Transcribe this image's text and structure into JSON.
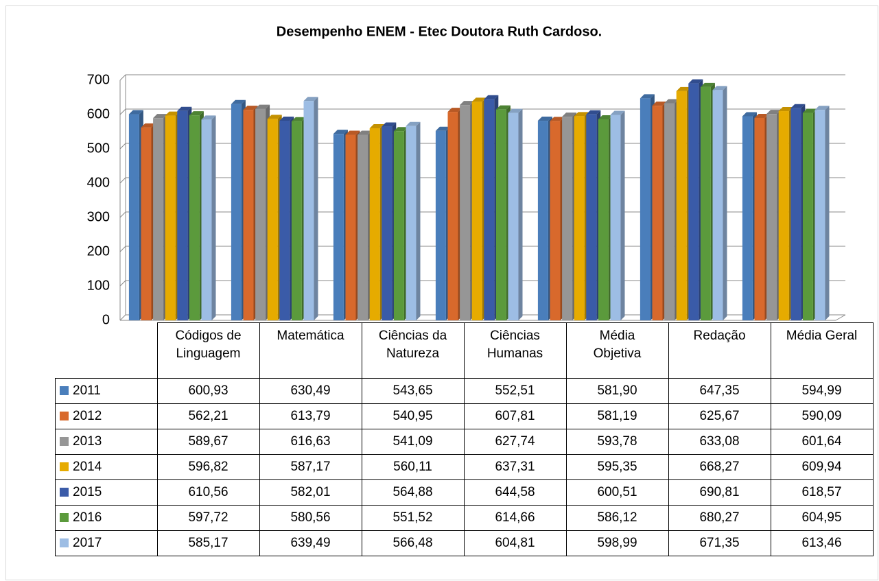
{
  "chart_data": {
    "type": "bar3d",
    "title": "Desempenho ENEM - Etec Doutora Ruth Cardoso.",
    "categories": [
      "Códigos de Linguagem",
      "Matemática",
      "Ciências da Natureza",
      "Ciências Humanas",
      "Média Objetiva",
      "Redação",
      "Média Geral"
    ],
    "series": [
      {
        "name": "2011",
        "color": "#4a7ebb",
        "values": [
          600.93,
          630.49,
          543.65,
          552.51,
          581.9,
          647.35,
          594.99
        ],
        "value_labels": [
          "600,93",
          "630,49",
          "543,65",
          "552,51",
          "581,90",
          "647,35",
          "594,99"
        ]
      },
      {
        "name": "2012",
        "color": "#d8692c",
        "values": [
          562.21,
          613.79,
          540.95,
          607.81,
          581.19,
          625.67,
          590.09
        ],
        "value_labels": [
          "562,21",
          "613,79",
          "540,95",
          "607,81",
          "581,19",
          "625,67",
          "590,09"
        ]
      },
      {
        "name": "2013",
        "color": "#969696",
        "values": [
          589.67,
          616.63,
          541.09,
          627.74,
          593.78,
          633.08,
          601.64
        ],
        "value_labels": [
          "589,67",
          "616,63",
          "541,09",
          "627,74",
          "593,78",
          "633,08",
          "601,64"
        ]
      },
      {
        "name": "2014",
        "color": "#e6ab00",
        "values": [
          596.82,
          587.17,
          560.11,
          637.31,
          595.35,
          668.27,
          609.94
        ],
        "value_labels": [
          "596,82",
          "587,17",
          "560,11",
          "637,31",
          "595,35",
          "668,27",
          "609,94"
        ]
      },
      {
        "name": "2015",
        "color": "#3a5ba8",
        "values": [
          610.56,
          582.01,
          564.88,
          644.58,
          600.51,
          690.81,
          618.57
        ],
        "value_labels": [
          "610,56",
          "582,01",
          "564,88",
          "644,58",
          "600,51",
          "690,81",
          "618,57"
        ]
      },
      {
        "name": "2016",
        "color": "#5b9a3c",
        "values": [
          597.72,
          580.56,
          551.52,
          614.66,
          586.12,
          680.27,
          604.95
        ],
        "value_labels": [
          "597,72",
          "580,56",
          "551,52",
          "614,66",
          "586,12",
          "680,27",
          "604,95"
        ]
      },
      {
        "name": "2017",
        "color": "#9dbde4",
        "values": [
          585.17,
          639.49,
          566.48,
          604.81,
          598.99,
          671.35,
          613.46
        ],
        "value_labels": [
          "585,17",
          "639,49",
          "566,48",
          "604,81",
          "598,99",
          "671,35",
          "613,46"
        ]
      }
    ],
    "ylim": [
      0,
      700
    ],
    "yticks": [
      0,
      100,
      200,
      300,
      400,
      500,
      600,
      700
    ],
    "grid": true
  }
}
